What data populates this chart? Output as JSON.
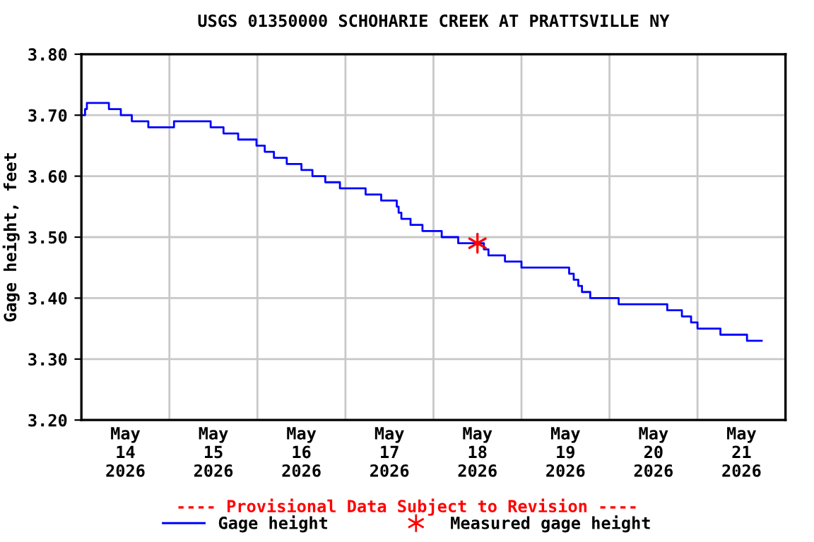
{
  "chart_data": {
    "type": "step",
    "title": "USGS 01350000 SCHOHARIE CREEK AT PRATTSVILLE NY",
    "ylabel": "Gage height, feet",
    "annotations": [
      "---- Provisional Data Subject to Revision ----"
    ],
    "xlim": [
      "2026-05-14T00:00",
      "2026-05-22T00:00"
    ],
    "xticks": [
      {
        "value": "2026-05-14T12:00",
        "label": "May\n14\n2026"
      },
      {
        "value": "2026-05-15T12:00",
        "label": "May\n15\n2026"
      },
      {
        "value": "2026-05-16T12:00",
        "label": "May\n16\n2026"
      },
      {
        "value": "2026-05-17T12:00",
        "label": "May\n17\n2026"
      },
      {
        "value": "2026-05-18T12:00",
        "label": "May\n18\n2026"
      },
      {
        "value": "2026-05-19T12:00",
        "label": "May\n19\n2026"
      },
      {
        "value": "2026-05-20T12:00",
        "label": "May\n20\n2026"
      },
      {
        "value": "2026-05-21T12:00",
        "label": "May\n21\n2026"
      },
      {
        "value": "2026-05-15T00:00",
        "label": null
      },
      {
        "value": "2026-05-16T00:00",
        "label": null
      },
      {
        "value": "2026-05-17T00:00",
        "label": null
      },
      {
        "value": "2026-05-18T00:00",
        "label": null
      },
      {
        "value": "2026-05-19T00:00",
        "label": null
      },
      {
        "value": "2026-05-20T00:00",
        "label": null
      },
      {
        "value": "2026-05-21T00:00",
        "label": null
      }
    ],
    "ylim": [
      3.2,
      3.8
    ],
    "yticks": [
      {
        "value": 3.2,
        "label": "3.20"
      },
      {
        "value": 3.3,
        "label": "3.30"
      },
      {
        "value": 3.4,
        "label": "3.40"
      },
      {
        "value": 3.5,
        "label": "3.50"
      },
      {
        "value": 3.6,
        "label": "3.60"
      },
      {
        "value": 3.7,
        "label": "3.70"
      },
      {
        "value": 3.8,
        "label": "3.80"
      }
    ],
    "grid": true,
    "legend": "bottom",
    "series": [
      {
        "name": "Gage height",
        "color": "#0000ff",
        "marker": "none",
        "x": [
          "2026-05-14T00:30",
          "2026-05-14T01:00",
          "2026-05-14T01:30",
          "2026-05-14T07:30",
          "2026-05-14T10:45",
          "2026-05-14T13:45",
          "2026-05-14T18:15",
          "2026-05-15T01:15",
          "2026-05-15T11:15",
          "2026-05-15T14:45",
          "2026-05-15T18:45",
          "2026-05-15T23:45",
          "2026-05-16T02:00",
          "2026-05-16T04:30",
          "2026-05-16T08:00",
          "2026-05-16T12:00",
          "2026-05-16T15:00",
          "2026-05-16T18:30",
          "2026-05-16T22:30",
          "2026-05-17T05:30",
          "2026-05-17T09:45",
          "2026-05-17T14:00",
          "2026-05-17T14:30",
          "2026-05-17T15:15",
          "2026-05-17T17:45",
          "2026-05-17T21:00",
          "2026-05-18T02:15",
          "2026-05-18T06:45",
          "2026-05-18T13:45",
          "2026-05-18T15:00",
          "2026-05-18T19:30",
          "2026-05-19T00:00",
          "2026-05-19T13:00",
          "2026-05-19T14:15",
          "2026-05-19T15:30",
          "2026-05-19T16:30",
          "2026-05-19T18:45",
          "2026-05-20T02:30",
          "2026-05-20T15:45",
          "2026-05-20T19:45",
          "2026-05-20T22:15",
          "2026-05-21T00:00",
          "2026-05-21T06:15",
          "2026-05-21T13:30",
          "2026-05-21T17:30"
        ],
        "values": [
          3.7,
          3.71,
          3.72,
          3.71,
          3.7,
          3.69,
          3.68,
          3.69,
          3.68,
          3.67,
          3.66,
          3.65,
          3.64,
          3.63,
          3.62,
          3.61,
          3.6,
          3.59,
          3.58,
          3.57,
          3.56,
          3.55,
          3.54,
          3.53,
          3.52,
          3.51,
          3.5,
          3.49,
          3.48,
          3.47,
          3.46,
          3.45,
          3.44,
          3.43,
          3.42,
          3.41,
          3.4,
          3.39,
          3.38,
          3.37,
          3.36,
          3.35,
          3.34,
          3.33,
          3.33
        ]
      },
      {
        "name": "Measured gage height",
        "type": "scatter",
        "color": "#ff0000",
        "marker": "cross",
        "x": [
          "2026-05-18T12:00"
        ],
        "values": [
          3.49
        ]
      }
    ]
  }
}
